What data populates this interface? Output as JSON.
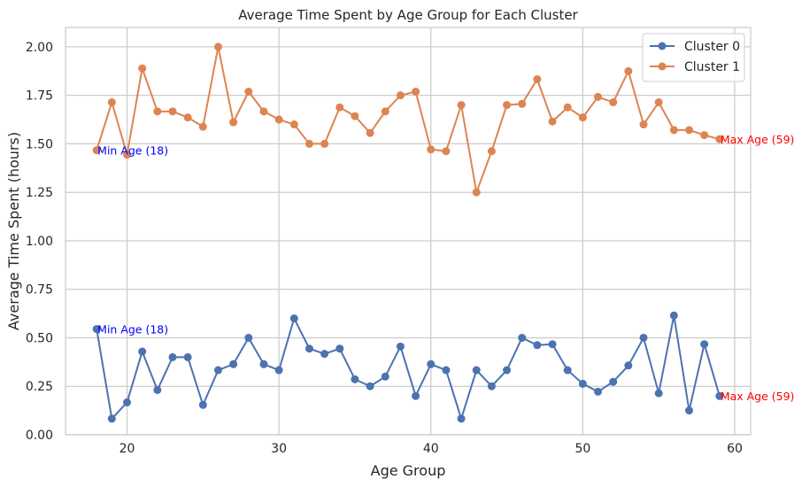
{
  "chart_data": {
    "type": "line",
    "title": "Average Time Spent by Age Group for Each Cluster",
    "xlabel": "Age Group",
    "ylabel": "Average Time Spent (hours)",
    "xlim": [
      15.95,
      61.05
    ],
    "ylim": [
      0.0,
      2.1
    ],
    "xticks": [
      20,
      30,
      40,
      50,
      60
    ],
    "yticks": [
      0.0,
      0.25,
      0.5,
      0.75,
      1.0,
      1.25,
      1.5,
      1.75,
      2.0
    ],
    "grid": true,
    "legend_position": "top-right",
    "x": [
      18,
      19,
      20,
      21,
      22,
      23,
      24,
      25,
      26,
      27,
      28,
      29,
      30,
      31,
      32,
      33,
      34,
      35,
      36,
      37,
      38,
      39,
      40,
      41,
      42,
      43,
      44,
      45,
      46,
      47,
      48,
      49,
      50,
      51,
      52,
      53,
      54,
      55,
      56,
      57,
      58,
      59
    ],
    "series": [
      {
        "name": "Cluster 0",
        "color": "#4c72b0",
        "values": [
          0.545,
          0.083,
          0.167,
          0.429,
          0.231,
          0.4,
          0.4,
          0.154,
          0.333,
          0.364,
          0.5,
          0.364,
          0.333,
          0.6,
          0.444,
          0.417,
          0.444,
          0.286,
          0.25,
          0.3,
          0.455,
          0.2,
          0.364,
          0.333,
          0.083,
          0.333,
          0.25,
          0.333,
          0.5,
          0.462,
          0.467,
          0.333,
          0.263,
          0.222,
          0.273,
          0.357,
          0.5,
          0.214,
          0.615,
          0.125,
          0.467,
          0.2
        ]
      },
      {
        "name": "Cluster 1",
        "color": "#dd8452",
        "values": [
          1.467,
          1.714,
          1.444,
          1.889,
          1.667,
          1.667,
          1.636,
          1.588,
          2.0,
          1.611,
          1.769,
          1.667,
          1.625,
          1.6,
          1.5,
          1.5,
          1.688,
          1.643,
          1.556,
          1.667,
          1.75,
          1.769,
          1.471,
          1.462,
          1.7,
          1.25,
          1.462,
          1.7,
          1.706,
          1.833,
          1.615,
          1.688,
          1.636,
          1.742,
          1.714,
          1.875,
          1.6,
          1.714,
          1.571,
          1.571,
          1.545,
          1.524
        ]
      }
    ],
    "annotations": [
      {
        "text": "Min Age (18)",
        "x": 18,
        "y": 0.545,
        "color": "#0000ff"
      },
      {
        "text": "Max Age (59)",
        "x": 59,
        "y": 0.2,
        "color": "#ff0000"
      },
      {
        "text": "Min Age (18)",
        "x": 18,
        "y": 1.467,
        "color": "#0000ff"
      },
      {
        "text": "Max Age (59)",
        "x": 59,
        "y": 1.524,
        "color": "#ff0000"
      }
    ]
  }
}
